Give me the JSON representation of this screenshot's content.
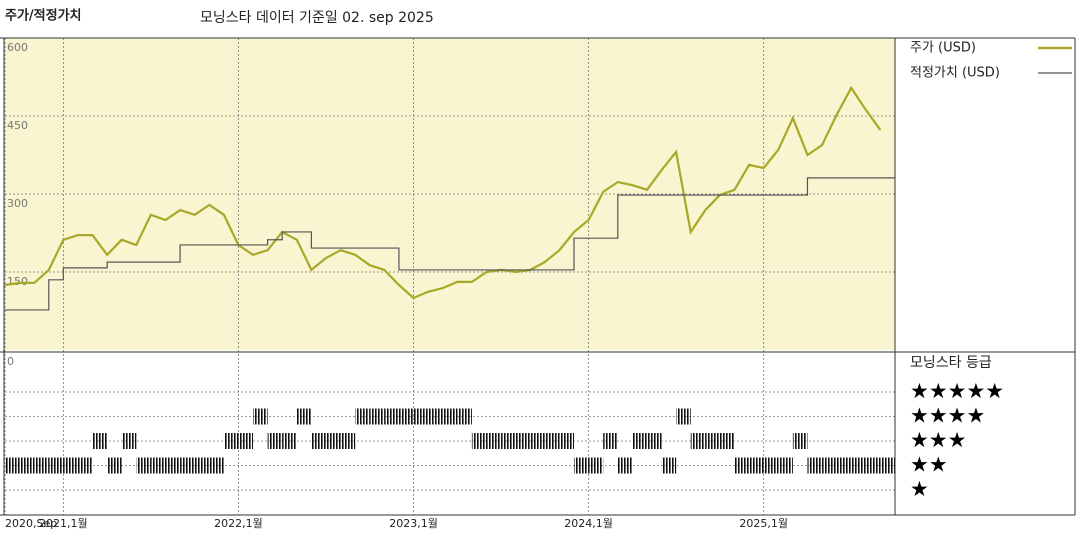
{
  "header": {
    "title": "주가/적정가치",
    "subtitle": "모닝스타 데이터 기준일 02. sep 2025"
  },
  "chart_data": [
    {
      "type": "line",
      "legend_position": "right",
      "x": [
        "2020-09",
        "2020-10",
        "2020-11",
        "2020-12",
        "2021-01",
        "2021-02",
        "2021-03",
        "2021-04",
        "2021-05",
        "2021-06",
        "2021-07",
        "2021-08",
        "2021-09",
        "2021-10",
        "2021-11",
        "2021-12",
        "2022-01",
        "2022-02",
        "2022-03",
        "2022-04",
        "2022-05",
        "2022-06",
        "2022-07",
        "2022-08",
        "2022-09",
        "2022-10",
        "2022-11",
        "2022-12",
        "2023-01",
        "2023-02",
        "2023-03",
        "2023-04",
        "2023-05",
        "2023-06",
        "2023-07",
        "2023-08",
        "2023-09",
        "2023-10",
        "2023-11",
        "2023-12",
        "2024-01",
        "2024-02",
        "2024-03",
        "2024-04",
        "2024-05",
        "2024-06",
        "2024-07",
        "2024-08",
        "2024-09",
        "2024-10",
        "2024-11",
        "2024-12",
        "2025-01",
        "2025-02",
        "2025-03",
        "2025-04",
        "2025-05",
        "2025-06",
        "2025-07",
        "2025-08",
        "2025-09"
      ],
      "xlim": [
        "2020-09",
        "2025-10"
      ],
      "xticks": [
        {
          "value": "2020-09",
          "label": "2020,Sep"
        },
        {
          "value": "2021-01",
          "label": "2021,1월"
        },
        {
          "value": "2022-01",
          "label": "2022,1월"
        },
        {
          "value": "2023-01",
          "label": "2023,1월"
        },
        {
          "value": "2024-01",
          "label": "2024,1월"
        },
        {
          "value": "2025-01",
          "label": "2025,1월"
        }
      ],
      "ylim": [
        0,
        600
      ],
      "yticks": [
        150,
        300,
        450,
        600
      ],
      "grid": true,
      "background": "#f8f5d0",
      "series": [
        {
          "name": "주가 (USD)",
          "color": "#a8a828",
          "shape": "line",
          "values": [
            125,
            129,
            129,
            154,
            212,
            221,
            221,
            183,
            212,
            202,
            260,
            250,
            269,
            260,
            279,
            260,
            202,
            183,
            192,
            227,
            212,
            154,
            177,
            192,
            183,
            163,
            154,
            125,
            100,
            112,
            119,
            131,
            131,
            150,
            154,
            150,
            154,
            169,
            192,
            227,
            250,
            304,
            323,
            317,
            308,
            346,
            381,
            227,
            269,
            298,
            308,
            356,
            350,
            385,
            446,
            375,
            394,
            452,
            504,
            462,
            423
          ]
        },
        {
          "name": "적정가치 (USD)",
          "color": "#555555",
          "shape": "step",
          "values": [
            77,
            77,
            77,
            135,
            158,
            158,
            158,
            169,
            169,
            169,
            169,
            169,
            202,
            202,
            202,
            202,
            202,
            202,
            212,
            227,
            227,
            196,
            196,
            196,
            196,
            196,
            196,
            154,
            154,
            154,
            154,
            154,
            154,
            154,
            154,
            154,
            154,
            154,
            154,
            215,
            215,
            215,
            298,
            298,
            298,
            298,
            298,
            298,
            298,
            298,
            298,
            298,
            298,
            298,
            298,
            331,
            331,
            331,
            331,
            331,
            331
          ]
        }
      ]
    },
    {
      "type": "strip",
      "legend_title": "모닝스타 등급",
      "yticks": [
        0
      ],
      "rows": [
        "★",
        "★★",
        "★★★",
        "★★★★",
        "★★★★★"
      ],
      "x": [
        "2020-09",
        "2020-10",
        "2020-11",
        "2020-12",
        "2021-01",
        "2021-02",
        "2021-03",
        "2021-04",
        "2021-05",
        "2021-06",
        "2021-07",
        "2021-08",
        "2021-09",
        "2021-10",
        "2021-11",
        "2021-12",
        "2022-01",
        "2022-02",
        "2022-03",
        "2022-04",
        "2022-05",
        "2022-06",
        "2022-07",
        "2022-08",
        "2022-09",
        "2022-10",
        "2022-11",
        "2022-12",
        "2023-01",
        "2023-02",
        "2023-03",
        "2023-04",
        "2023-05",
        "2023-06",
        "2023-07",
        "2023-08",
        "2023-09",
        "2023-10",
        "2023-11",
        "2023-12",
        "2024-01",
        "2024-02",
        "2024-03",
        "2024-04",
        "2024-05",
        "2024-06",
        "2024-07",
        "2024-08",
        "2024-09",
        "2024-10",
        "2024-11",
        "2024-12",
        "2025-01",
        "2025-02",
        "2025-03",
        "2025-04",
        "2025-05",
        "2025-06",
        "2025-07",
        "2025-08",
        "2025-09"
      ],
      "values": [
        2,
        2,
        2,
        2,
        2,
        2,
        3,
        2,
        3,
        2,
        2,
        2,
        2,
        2,
        2,
        3,
        3,
        4,
        3,
        3,
        4,
        3,
        3,
        3,
        4,
        4,
        4,
        4,
        4,
        4,
        4,
        4,
        3,
        3,
        3,
        3,
        3,
        3,
        3,
        2,
        2,
        3,
        2,
        3,
        3,
        2,
        4,
        3,
        3,
        3,
        2,
        2,
        2,
        2,
        3,
        2,
        2,
        2,
        2,
        2,
        2
      ]
    }
  ]
}
